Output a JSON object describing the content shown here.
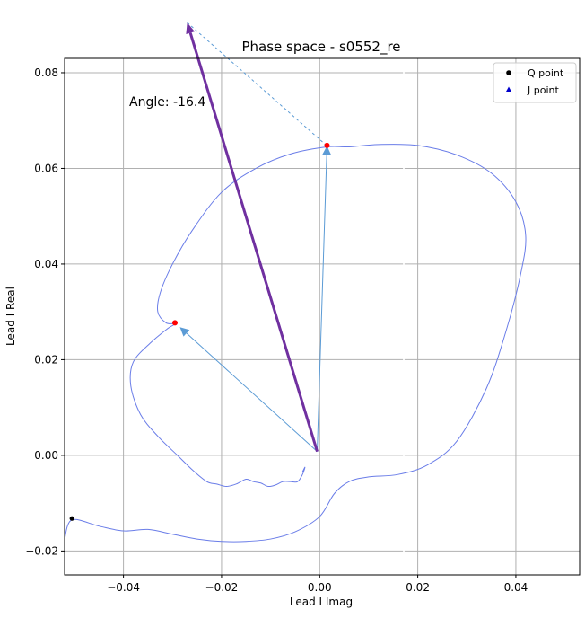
{
  "chart_data": {
    "type": "line",
    "title": "Phase space - s0552_re",
    "xlabel": "Lead I Imag",
    "ylabel": "Lead I Real",
    "xlim": [
      -0.052,
      0.053
    ],
    "ylim": [
      -0.025,
      0.083
    ],
    "xticks": [
      -0.04,
      -0.02,
      0.0,
      0.02,
      0.04
    ],
    "xtick_labels": [
      "−0.04",
      "−0.02",
      "0.00",
      "0.02",
      "0.04"
    ],
    "yticks": [
      -0.02,
      0.0,
      0.02,
      0.04,
      0.06,
      0.08
    ],
    "ytick_labels": [
      "−0.02",
      "0.00",
      "0.02",
      "0.04",
      "0.06",
      "0.08"
    ],
    "grid": true,
    "legend_placement": "top-right",
    "annotation": "Angle: -16.4",
    "trajectory": {
      "color": "#6a7de8",
      "x": [
        -0.052,
        -0.0505,
        -0.045,
        -0.04,
        -0.035,
        -0.03,
        -0.025,
        -0.02,
        -0.015,
        -0.01,
        -0.005,
        0.0,
        0.003,
        0.006,
        0.01,
        0.016,
        0.022,
        0.028,
        0.034,
        0.038,
        0.041,
        0.042,
        0.04,
        0.035,
        0.028,
        0.02,
        0.012,
        0.006,
        0.0015,
        -0.006,
        -0.013,
        -0.02,
        -0.026,
        -0.03,
        -0.0325,
        -0.033,
        -0.0313,
        -0.0295,
        -0.031,
        -0.0345,
        -0.038,
        -0.0385,
        -0.0365,
        -0.033,
        -0.029,
        -0.026,
        -0.023,
        -0.021,
        -0.019,
        -0.017,
        -0.015,
        -0.0135,
        -0.012,
        -0.0105,
        -0.009,
        -0.0075,
        -0.006,
        -0.0045,
        -0.0035,
        -0.003,
        -0.0035
      ],
      "y": [
        -0.0175,
        -0.0135,
        -0.0148,
        -0.0158,
        -0.0155,
        -0.0165,
        -0.0175,
        -0.018,
        -0.018,
        -0.0175,
        -0.016,
        -0.0128,
        -0.008,
        -0.0055,
        -0.0045,
        -0.004,
        -0.002,
        0.003,
        0.014,
        0.026,
        0.038,
        0.046,
        0.053,
        0.059,
        0.0628,
        0.0648,
        0.065,
        0.0645,
        0.0645,
        0.063,
        0.06,
        0.055,
        0.047,
        0.04,
        0.034,
        0.03,
        0.0277,
        0.0275,
        0.0265,
        0.0235,
        0.0195,
        0.0145,
        0.0085,
        0.004,
        0.0,
        -0.003,
        -0.0055,
        -0.006,
        -0.0065,
        -0.006,
        -0.005,
        -0.0055,
        -0.0058,
        -0.0065,
        -0.0062,
        -0.0055,
        -0.0055,
        -0.0055,
        -0.004,
        -0.0025,
        -0.0035
      ]
    },
    "points": {
      "q_point": {
        "x": -0.0505,
        "y": -0.0132,
        "color": "#000000",
        "label": "Q point"
      },
      "j_point_label": "J point",
      "j_point_color": "#0000cc",
      "red_points": [
        {
          "x": 0.0015,
          "y": 0.0648
        },
        {
          "x": -0.0295,
          "y": 0.0277
        }
      ],
      "origin": {
        "x": -0.0005,
        "y": 0.0008
      }
    },
    "vectors": [
      {
        "from": [
          -0.0005,
          0.0008
        ],
        "to": [
          0.0015,
          0.0647
        ],
        "color": "#5b9bd5",
        "role": "vector-to-r-peak"
      },
      {
        "from": [
          -0.0005,
          0.0008
        ],
        "to": [
          -0.0285,
          0.0268
        ],
        "color": "#5b9bd5",
        "role": "vector-to-second-peak"
      },
      {
        "from": [
          -0.0005,
          0.0008
        ],
        "to": [
          -0.027,
          0.0905
        ],
        "color": "#7030a0",
        "role": "resultant-vector"
      }
    ],
    "dashed_line": {
      "from": [
        -0.027,
        0.0905
      ],
      "to": [
        0.0015,
        0.0647
      ],
      "color": "#5b9bd5"
    },
    "legend": [
      {
        "label": "Q point",
        "marker": "circle",
        "color": "#000000"
      },
      {
        "label": "J point",
        "marker": "triangle",
        "color": "#0000cc"
      }
    ]
  }
}
